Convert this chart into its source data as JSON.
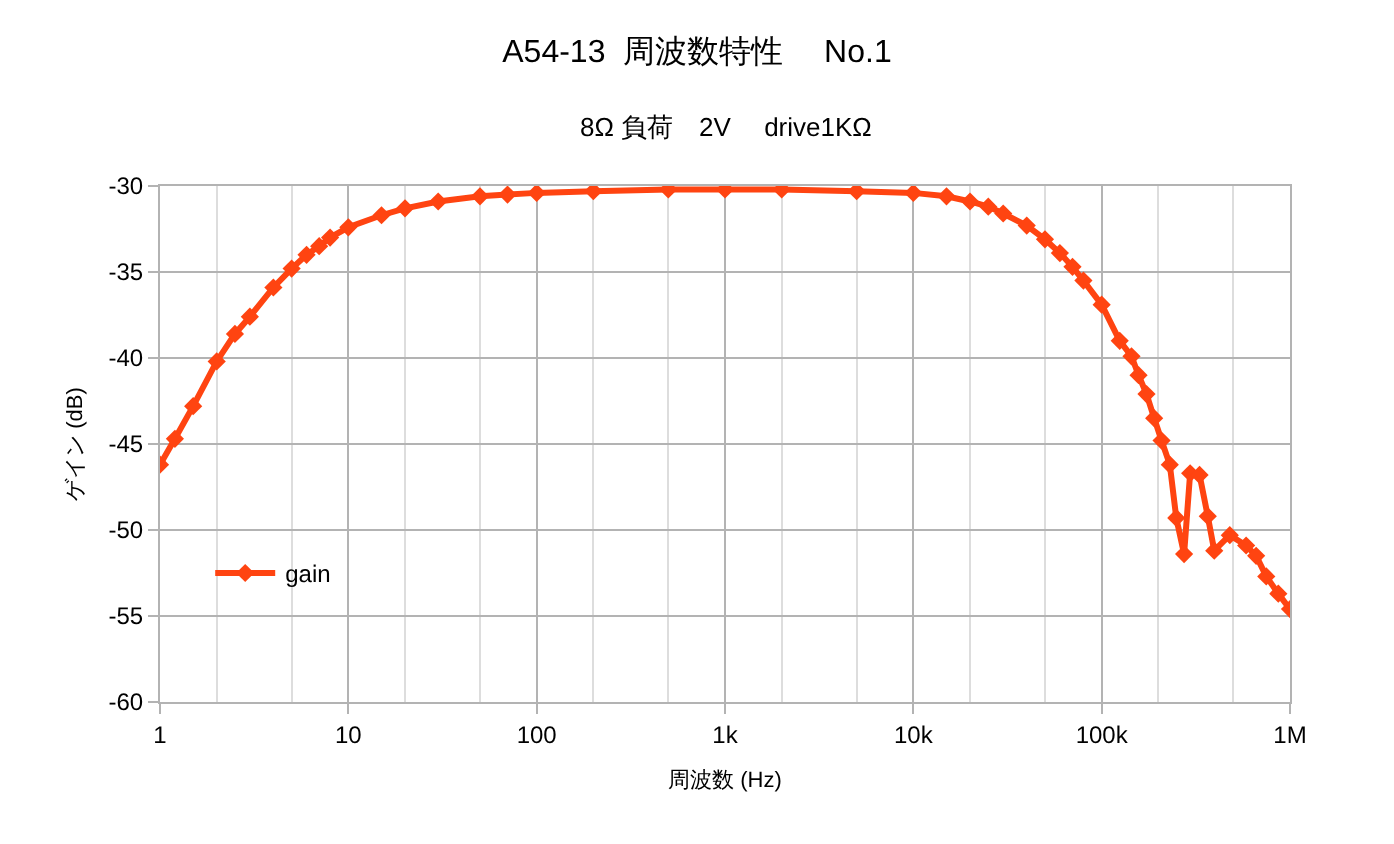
{
  "chart_data": {
    "type": "line",
    "title": "A54-13  周波数特性　 No.1",
    "subtitle": "8Ω 負荷　2V　 drive1KΩ",
    "xlabel": "周波数 (Hz)",
    "ylabel": "ゲイン (dB)",
    "log": "x",
    "grid": true,
    "legend": "left",
    "marker": "diamond",
    "line_style": "solid",
    "xlim": [
      1,
      1000000
    ],
    "xticks": [
      1,
      10,
      100,
      {
        "value": 1000,
        "label": "1k"
      },
      {
        "value": 10000,
        "label": "10k"
      },
      {
        "value": 100000,
        "label": "100k"
      },
      {
        "value": 1000000,
        "label": "1M"
      }
    ],
    "ylim": [
      -60,
      -30
    ],
    "yticks": [
      -60,
      -55,
      -50,
      -45,
      -40,
      -35,
      -30
    ],
    "series": [
      {
        "name": "gain",
        "color": "#ff4411",
        "x": [
          1,
          1.2,
          1.5,
          2,
          2.5,
          3,
          4,
          5,
          6,
          7,
          8,
          10,
          15,
          20,
          30,
          50,
          70,
          100,
          200,
          500,
          1000,
          2000,
          5000,
          10000,
          15000,
          20000,
          25000,
          30000,
          40000,
          50000,
          60000,
          70000,
          80000,
          100000,
          124700,
          144000,
          157000,
          173000,
          190000,
          208000,
          230000,
          249000,
          274000,
          295000,
          331000,
          366000,
          396000,
          479000,
          585000,
          661000,
          748000,
          867000,
          1000000
        ],
        "values": [
          -46.2,
          -44.7,
          -42.8,
          -40.2,
          -38.6,
          -37.6,
          -35.9,
          -34.8,
          -34.0,
          -33.5,
          -33.0,
          -32.4,
          -31.7,
          -31.3,
          -30.9,
          -30.6,
          -30.5,
          -30.4,
          -30.3,
          -30.2,
          -30.2,
          -30.2,
          -30.3,
          -30.4,
          -30.6,
          -30.9,
          -31.2,
          -31.6,
          -32.3,
          -33.1,
          -33.9,
          -34.7,
          -35.5,
          -36.9,
          -39.0,
          -39.9,
          -41.0,
          -42.1,
          -43.5,
          -44.8,
          -46.2,
          -49.3,
          -51.4,
          -46.7,
          -46.8,
          -49.2,
          -51.2,
          -50.3,
          -50.9,
          -51.5,
          -52.7,
          -53.7,
          -54.6
        ]
      }
    ]
  }
}
